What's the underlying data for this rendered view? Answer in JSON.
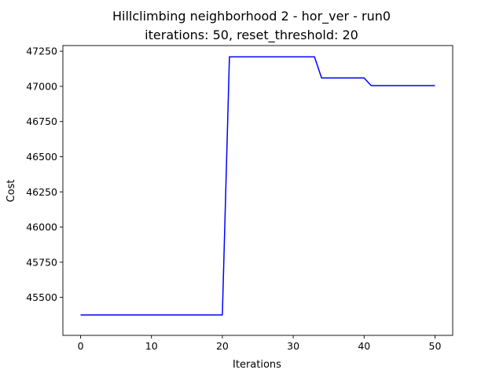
{
  "chart_data": {
    "type": "line",
    "title": "Hillclimbing neighborhood 2 - hor_ver - run0",
    "subtitle": "iterations: 50, reset_threshold: 20",
    "xlabel": "Iterations",
    "ylabel": "Cost",
    "xlim": [
      -2.5,
      52.5
    ],
    "ylim": [
      45230,
      47290
    ],
    "xticks": [
      0,
      10,
      20,
      30,
      40,
      50
    ],
    "yticks": [
      45500,
      45750,
      46000,
      46250,
      46500,
      46750,
      47000,
      47250
    ],
    "grid": false,
    "series": [
      {
        "color": "#0000ff",
        "x": [
          0,
          1,
          2,
          3,
          4,
          5,
          6,
          7,
          8,
          9,
          10,
          11,
          12,
          13,
          14,
          15,
          16,
          17,
          18,
          19,
          20,
          21,
          22,
          23,
          24,
          25,
          26,
          27,
          28,
          29,
          30,
          31,
          32,
          33,
          34,
          35,
          36,
          37,
          38,
          39,
          40,
          41,
          42,
          43,
          44,
          45,
          46,
          47,
          48,
          49,
          50
        ],
        "y": [
          45375,
          45375,
          45375,
          45375,
          45375,
          45375,
          45375,
          45375,
          45375,
          45375,
          45375,
          45375,
          45375,
          45375,
          45375,
          45375,
          45375,
          45375,
          45375,
          45375,
          45375,
          47210,
          47210,
          47210,
          47210,
          47210,
          47210,
          47210,
          47210,
          47210,
          47210,
          47210,
          47210,
          47210,
          47060,
          47060,
          47060,
          47060,
          47060,
          47060,
          47060,
          47005,
          47005,
          47005,
          47005,
          47005,
          47005,
          47005,
          47005,
          47005,
          47005
        ]
      }
    ]
  }
}
